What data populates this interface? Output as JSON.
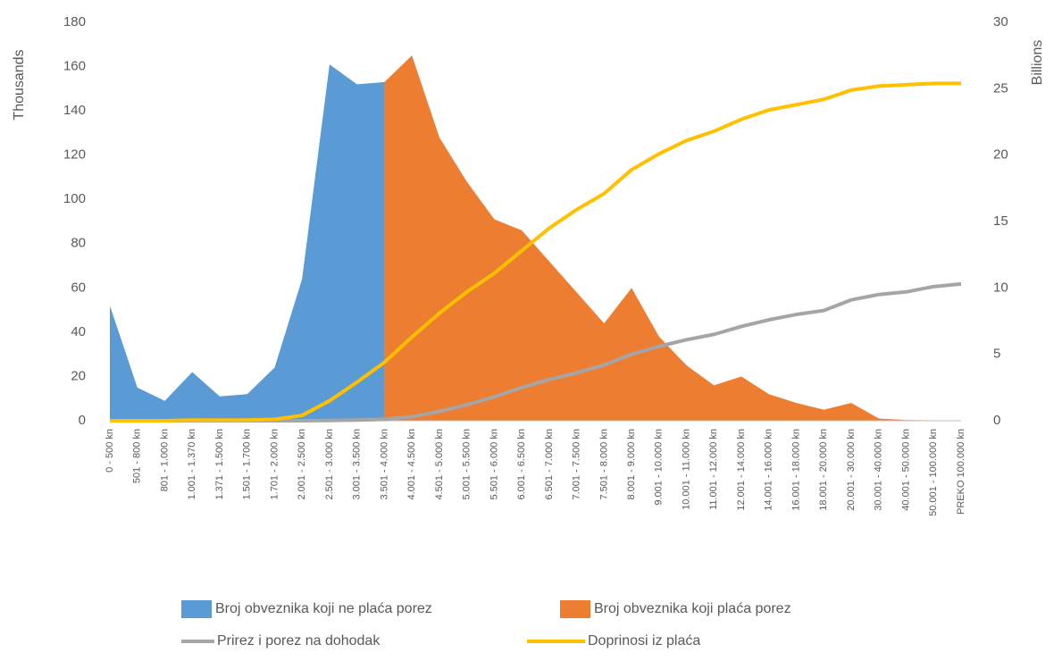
{
  "chart_data": {
    "type": "combo",
    "categories": [
      "0 - 500 kn",
      "501 - 800 kn",
      "801 - 1.000 kn",
      "1.001 - 1.370 kn",
      "1.371 - 1.500 kn",
      "1.501 - 1.700 kn",
      "1.701 - 2.000 kn",
      "2.001 - 2.500 kn",
      "2.501 - 3.000 kn",
      "3.001 - 3.500 kn",
      "3.501 - 4.000 kn",
      "4.001 - 4.500 kn",
      "4.501 - 5.000 kn",
      "5.001 - 5.500 kn",
      "5.501 - 6.000 kn",
      "6.001 - 6.500 kn",
      "6.501 - 7.000 kn",
      "7.001 - 7.500 kn",
      "7.501 - 8.000 kn",
      "8.001 - 9.000 kn",
      "9.001 - 10.000 kn",
      "10.001 - 11.000 kn",
      "11.001 - 12.000 kn",
      "12.001 - 14.000 kn",
      "14.001 - 16.000 kn",
      "16.001 - 18.000 kn",
      "18.001 - 20.000 kn",
      "20.001 - 30.000 kn",
      "30.001 - 40.000 kn",
      "40.001 - 50.000 kn",
      "50.001 - 100.000 kn",
      "PREKO 100.000 kn"
    ],
    "y_label": "Thousands",
    "y2_label": "Billions",
    "ylim": [
      0,
      180
    ],
    "yticks": [
      0,
      20,
      40,
      60,
      80,
      100,
      120,
      140,
      160,
      180
    ],
    "y2lim": [
      0,
      30
    ],
    "y2ticks": [
      0,
      5,
      10,
      15,
      20,
      25,
      30
    ],
    "series": [
      {
        "name": "Broj obveznika koji ne plaća porez",
        "type": "area",
        "color": "#5b9bd5",
        "values": [
          52,
          15,
          9,
          22,
          11,
          12,
          24,
          64,
          161,
          152,
          153,
          null,
          null,
          null,
          null,
          null,
          null,
          null,
          null,
          null,
          null,
          null,
          null,
          null,
          null,
          null,
          null,
          null,
          null,
          null,
          null,
          null
        ]
      },
      {
        "name": "Broj obveznika koji plaća porez",
        "type": "area",
        "color": "#ed7d31",
        "values": [
          null,
          null,
          null,
          null,
          null,
          null,
          null,
          null,
          null,
          null,
          153,
          165,
          128,
          108,
          91,
          86,
          72,
          58,
          44,
          60,
          38,
          25,
          16,
          20,
          12,
          8,
          5,
          8,
          1,
          0.3,
          0.2,
          0.1
        ]
      },
      {
        "name": "Prirez i porez na dohodak",
        "type": "line",
        "axis": "y2",
        "color": "#a5a5a5",
        "values": [
          0,
          0,
          0,
          0,
          0,
          0,
          0,
          0,
          0.02,
          0.05,
          0.1,
          0.3,
          0.7,
          1.2,
          1.8,
          2.5,
          3.1,
          3.6,
          4.2,
          5.0,
          5.6,
          6.1,
          6.5,
          7.1,
          7.6,
          8.0,
          8.3,
          9.1,
          9.5,
          9.7,
          10.1,
          10.3
        ]
      },
      {
        "name": "Doprinosi iz plaća",
        "type": "line",
        "axis": "y2",
        "color": "#ffc000",
        "values": [
          0,
          0,
          0,
          0.05,
          0.05,
          0.05,
          0.1,
          0.4,
          1.5,
          2.9,
          4.4,
          6.3,
          8.1,
          9.7,
          11.1,
          12.8,
          14.5,
          15.9,
          17.1,
          18.9,
          20.1,
          21.1,
          21.8,
          22.7,
          23.4,
          23.8,
          24.2,
          24.9,
          25.2,
          25.3,
          25.4,
          25.4
        ]
      }
    ]
  }
}
